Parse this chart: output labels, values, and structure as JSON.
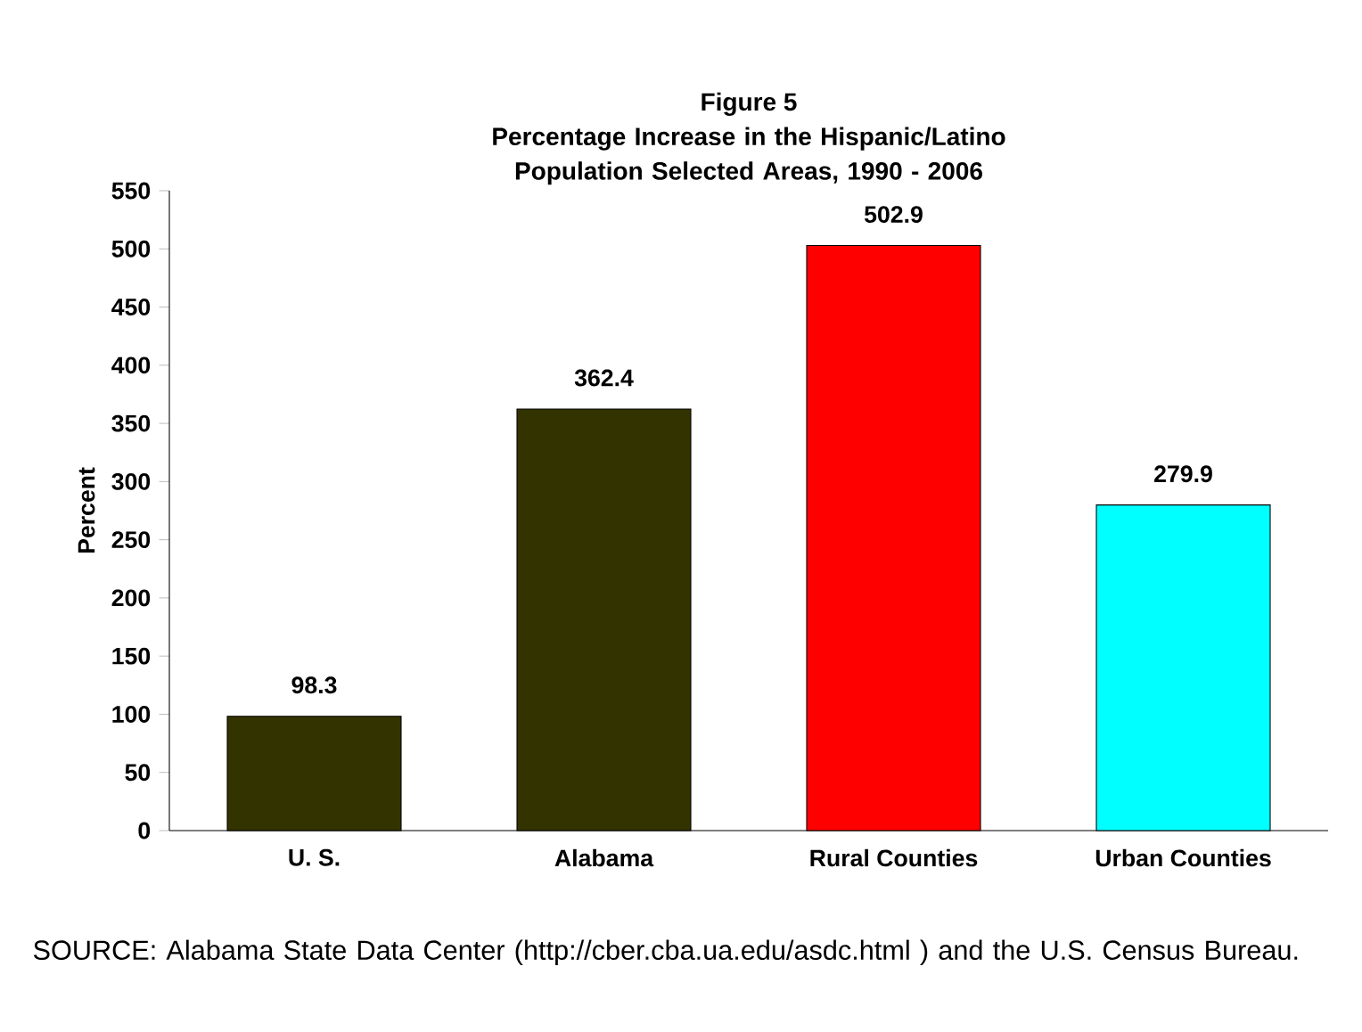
{
  "chart_data": {
    "type": "bar",
    "title": "Figure 5",
    "subtitle": "Percentage Increase in the Hispanic/Latino Population Selected Areas, 1990 - 2006",
    "ylabel": "Percent",
    "categories": [
      "U. S.",
      "Alabama",
      "Rural Counties",
      "Urban Counties"
    ],
    "values": [
      98.3,
      362.4,
      502.9,
      279.9
    ],
    "colors": [
      "#333300",
      "#333300",
      "#ff0000",
      "#00ffff"
    ],
    "ylim": [
      0,
      550
    ],
    "yticks": [
      0,
      50,
      100,
      150,
      200,
      250,
      300,
      350,
      400,
      450,
      500,
      550
    ],
    "data_labels": true,
    "grid": false,
    "annotations": [
      "SOURCE: Alabama State Data Center (http://cber.cba.ua.edu/asdc.html ) and the U.S. Census Bureau."
    ]
  }
}
